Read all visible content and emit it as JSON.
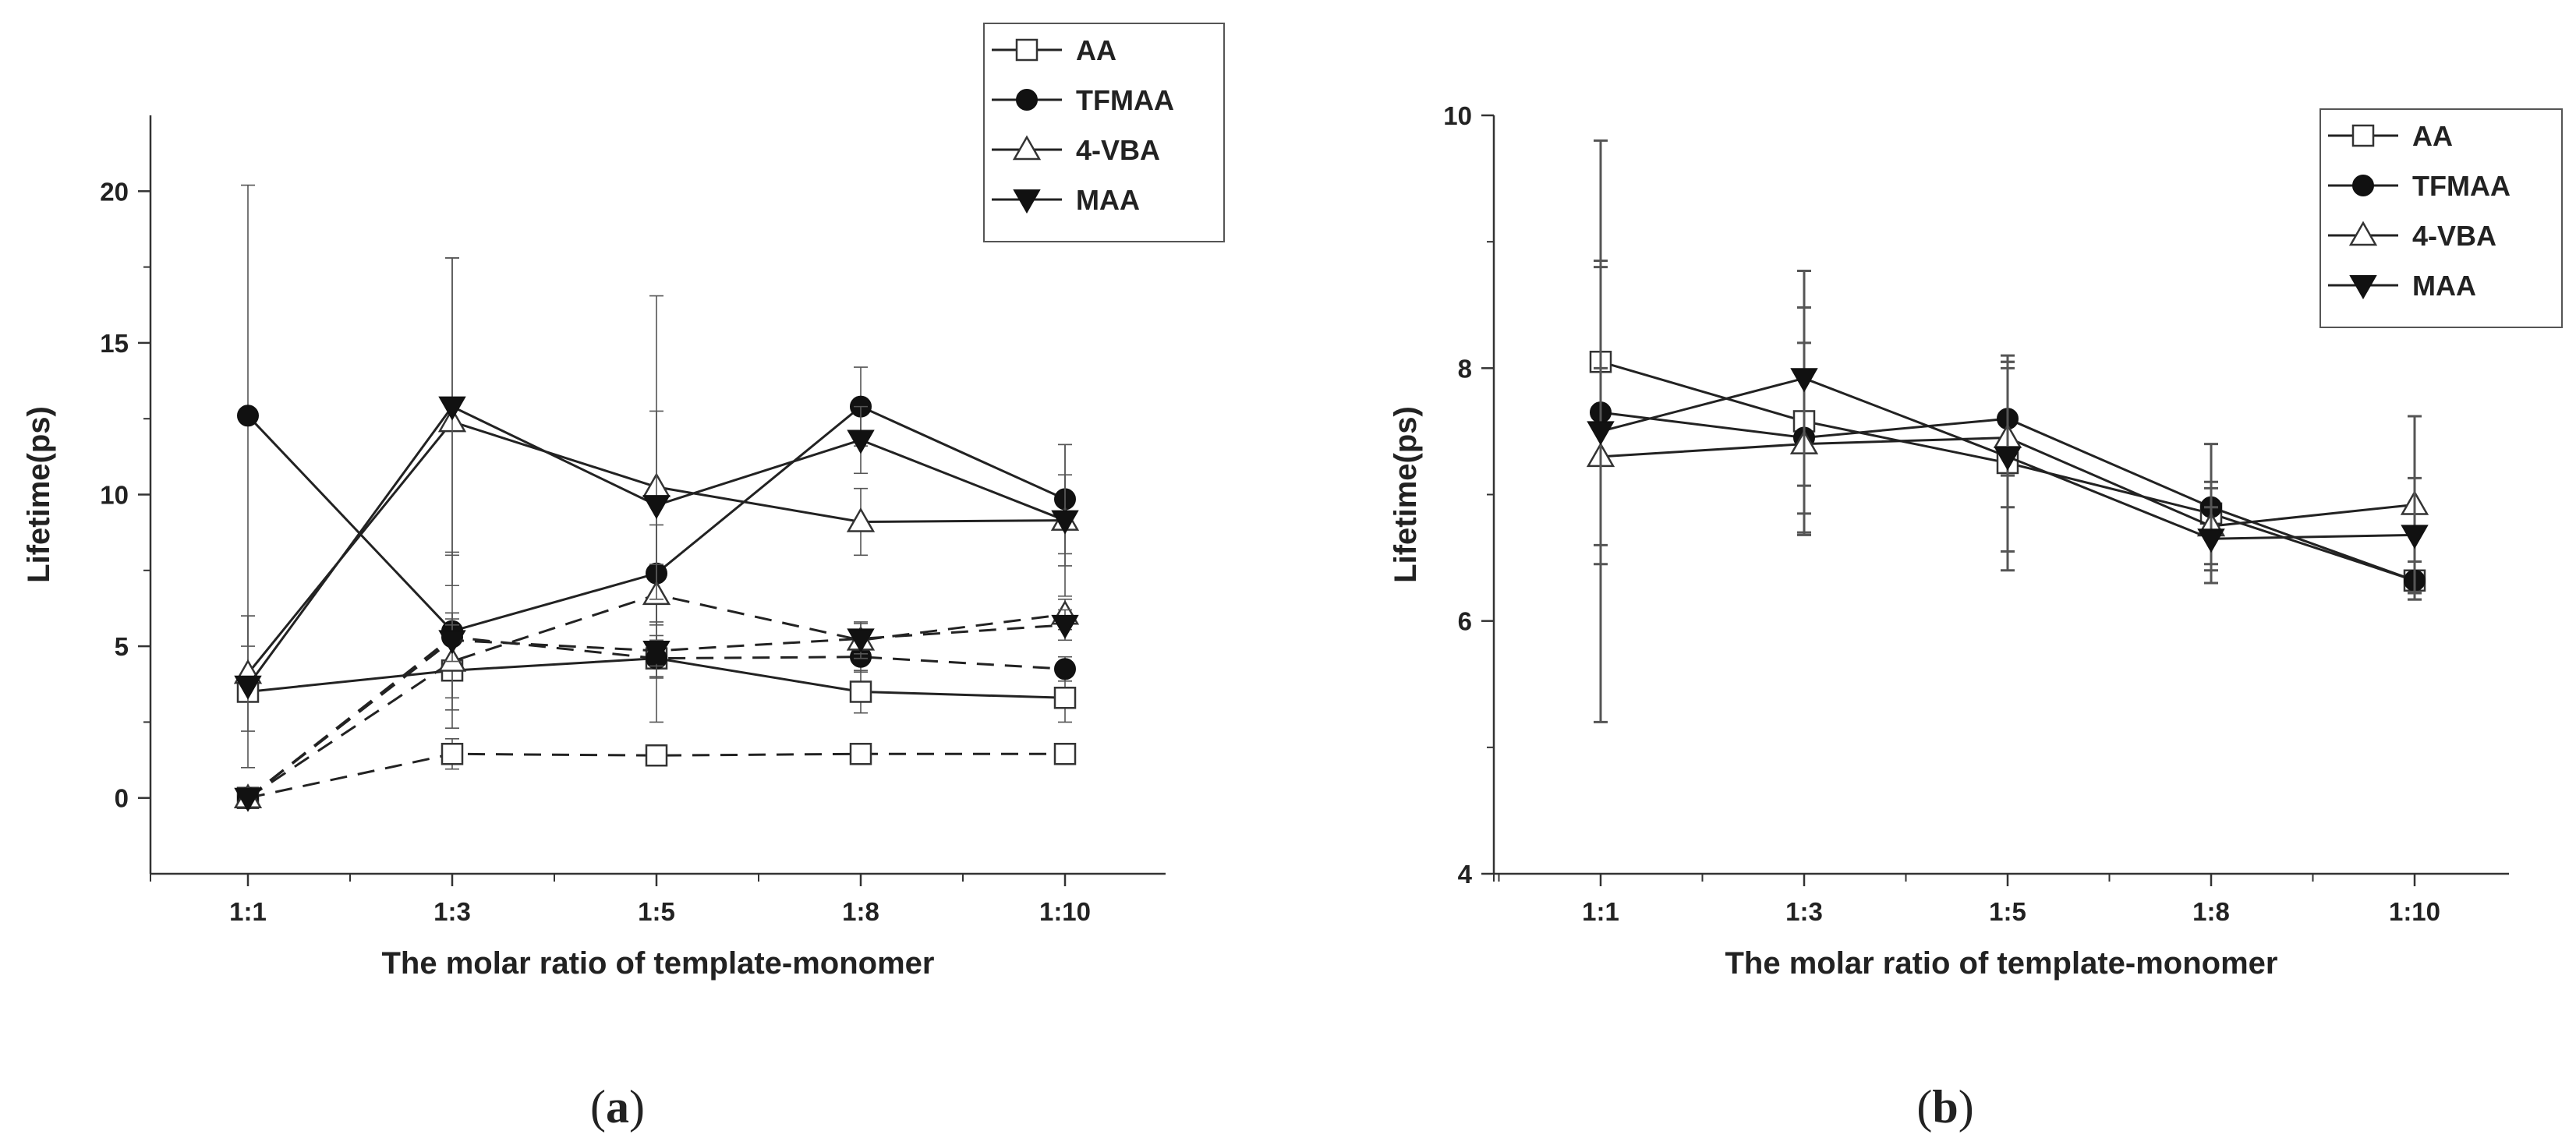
{
  "figure": {
    "panel_labels": [
      "a",
      "b"
    ]
  },
  "chart_data": [
    {
      "type": "line",
      "panel": "a",
      "categories": [
        "1:1",
        "1:3",
        "1:5",
        "1:8",
        "1:10"
      ],
      "xlabel": "The molar ratio of template-monomer",
      "ylabel": "Lifetime(ps)",
      "ylim": [
        -2.5,
        22.5
      ],
      "yticks": [
        0,
        5,
        10,
        15,
        20
      ],
      "legend_position": "top-right",
      "grid": false,
      "series": [
        {
          "name": "AA",
          "marker": "square-open",
          "style": "solid",
          "values": [
            3.5,
            4.2,
            4.6,
            3.5,
            3.3
          ],
          "errors": [
            2.5,
            1.9,
            2.1,
            0.7,
            0.8
          ]
        },
        {
          "name": "AA",
          "marker": "square-open",
          "style": "dashed",
          "values": [
            0.0,
            1.45,
            1.4,
            1.45,
            1.45
          ],
          "errors": [
            0,
            0.5,
            0.2,
            0.2,
            0.2
          ]
        },
        {
          "name": "TFMAA",
          "marker": "circle-filled",
          "style": "solid",
          "values": [
            12.6,
            5.5,
            7.4,
            12.9,
            9.85
          ],
          "errors": [
            7.6,
            2.6,
            1.6,
            1.3,
            1.8
          ]
        },
        {
          "name": "TFMAA",
          "marker": "circle-filled",
          "style": "dashed",
          "values": [
            0.0,
            5.3,
            4.6,
            4.65,
            4.25
          ],
          "errors": [
            0,
            0.8,
            0.6,
            0.5,
            0.4
          ]
        },
        {
          "name": "4-VBA",
          "marker": "triangle-up-open",
          "style": "solid",
          "values": [
            4.1,
            12.4,
            10.25,
            9.1,
            9.15
          ],
          "errors": [
            1.9,
            5.4,
            6.3,
            1.1,
            2.5
          ]
        },
        {
          "name": "4-VBA",
          "marker": "triangle-up-open",
          "style": "dashed",
          "values": [
            0.0,
            4.5,
            6.7,
            5.2,
            6.05
          ],
          "errors": [
            0,
            1.2,
            1.0,
            0.6,
            0.5
          ]
        },
        {
          "name": "MAA",
          "marker": "triangle-down-filled",
          "style": "solid",
          "values": [
            3.7,
            12.9,
            9.65,
            11.8,
            9.15
          ],
          "errors": [
            0,
            4.9,
            3.1,
            1.1,
            1.5
          ]
        },
        {
          "name": "MAA",
          "marker": "triangle-down-filled",
          "style": "dashed",
          "values": [
            0.0,
            5.2,
            4.85,
            5.25,
            5.7
          ],
          "errors": [
            0,
            0.7,
            0.5,
            0.5,
            0.5
          ]
        }
      ]
    },
    {
      "type": "line",
      "panel": "b",
      "categories": [
        "1:1",
        "1:3",
        "1:5",
        "1:8",
        "1:10"
      ],
      "xlabel": "The molar ratio of template-monomer",
      "ylabel": "Lifetime(ps)",
      "ylim": [
        4,
        10
      ],
      "yticks": [
        4,
        6,
        8,
        10
      ],
      "legend_position": "top-right",
      "grid": false,
      "series": [
        {
          "name": "AA",
          "marker": "square-open",
          "style": "solid",
          "values": [
            8.05,
            7.58,
            7.25,
            6.85,
            6.32
          ],
          "errors": [
            0.75,
            0.9,
            0.85,
            0.55,
            0.15
          ]
        },
        {
          "name": "TFMAA",
          "marker": "circle-filled",
          "style": "solid",
          "values": [
            7.65,
            7.45,
            7.6,
            6.9,
            6.32
          ],
          "errors": [
            1.2,
            0.75,
            0.45,
            0.2,
            0.15
          ]
        },
        {
          "name": "4-VBA",
          "marker": "triangle-up-open",
          "style": "solid",
          "values": [
            7.3,
            7.4,
            7.45,
            6.75,
            6.92
          ],
          "errors": [
            0.7,
            0.55,
            0.55,
            0.3,
            0.7
          ]
        },
        {
          "name": "MAA",
          "marker": "triangle-down-filled",
          "style": "solid",
          "values": [
            7.5,
            7.92,
            7.3,
            6.65,
            6.68
          ],
          "errors": [
            2.3,
            0.85,
            0.75,
            0.25,
            0.45
          ]
        }
      ]
    }
  ]
}
